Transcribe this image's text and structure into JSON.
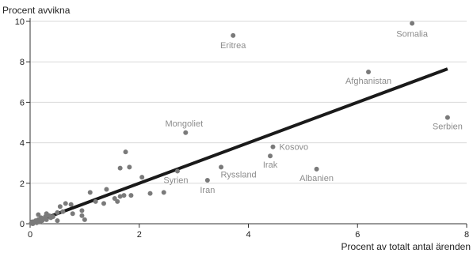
{
  "chart_data": {
    "type": "scatter",
    "title": "",
    "xlabel": "Procent av totalt antal ärenden",
    "ylabel": "Procent avvikna",
    "xlim": [
      0,
      8
    ],
    "ylim": [
      0,
      10
    ],
    "xticks": [
      "0",
      "2",
      "4",
      "6",
      "8"
    ],
    "yticks": [
      "0",
      "2",
      "4",
      "6",
      "8",
      "10"
    ],
    "grid": "horizontal",
    "colors": {
      "point": "#7a7a7a",
      "trend": "#1a1a1a",
      "grid": "#d9d9d9",
      "axis": "#333333",
      "label": "#8c8c8c"
    },
    "trend_line": {
      "x": [
        0,
        7.65
      ],
      "y": [
        0,
        7.65
      ]
    },
    "labeled_points": [
      {
        "label": "Somalia",
        "x": 7.0,
        "y": 9.9
      },
      {
        "label": "Eritrea",
        "x": 3.72,
        "y": 9.3
      },
      {
        "label": "Afghanistan",
        "x": 6.2,
        "y": 7.5
      },
      {
        "label": "Serbien",
        "x": 7.65,
        "y": 5.25
      },
      {
        "label": "Mongoliet",
        "x": 2.85,
        "y": 4.5
      },
      {
        "label": "Kosovo",
        "x": 4.45,
        "y": 3.8
      },
      {
        "label": "Irak",
        "x": 4.4,
        "y": 3.35
      },
      {
        "label": "Ryssland",
        "x": 3.5,
        "y": 2.8
      },
      {
        "label": "Albanien",
        "x": 5.25,
        "y": 2.7
      },
      {
        "label": "Syrien",
        "x": 2.7,
        "y": 2.6
      },
      {
        "label": "Iran",
        "x": 3.25,
        "y": 2.15
      }
    ],
    "unlabeled_points": [
      {
        "x": 1.75,
        "y": 3.55
      },
      {
        "x": 1.65,
        "y": 2.75
      },
      {
        "x": 1.82,
        "y": 2.8
      },
      {
        "x": 2.05,
        "y": 2.3
      },
      {
        "x": 2.2,
        "y": 1.5
      },
      {
        "x": 2.45,
        "y": 1.55
      },
      {
        "x": 1.4,
        "y": 1.7
      },
      {
        "x": 1.55,
        "y": 1.25
      },
      {
        "x": 1.6,
        "y": 1.1
      },
      {
        "x": 1.65,
        "y": 1.35
      },
      {
        "x": 1.72,
        "y": 1.4
      },
      {
        "x": 1.85,
        "y": 1.4
      },
      {
        "x": 1.35,
        "y": 1.0
      },
      {
        "x": 1.1,
        "y": 1.55
      },
      {
        "x": 1.2,
        "y": 1.1
      },
      {
        "x": 0.95,
        "y": 0.65
      },
      {
        "x": 0.95,
        "y": 0.4
      },
      {
        "x": 1.0,
        "y": 0.2
      },
      {
        "x": 0.75,
        "y": 0.95
      },
      {
        "x": 0.78,
        "y": 0.5
      },
      {
        "x": 0.65,
        "y": 1.0
      },
      {
        "x": 0.6,
        "y": 0.6
      },
      {
        "x": 0.55,
        "y": 0.85
      },
      {
        "x": 0.5,
        "y": 0.55
      },
      {
        "x": 0.5,
        "y": 0.15
      },
      {
        "x": 0.42,
        "y": 0.35
      },
      {
        "x": 0.38,
        "y": 0.3
      },
      {
        "x": 0.35,
        "y": 0.4
      },
      {
        "x": 0.3,
        "y": 0.2
      },
      {
        "x": 0.28,
        "y": 0.35
      },
      {
        "x": 0.25,
        "y": 0.25
      },
      {
        "x": 0.22,
        "y": 0.15
      },
      {
        "x": 0.2,
        "y": 0.3
      },
      {
        "x": 0.18,
        "y": 0.1
      },
      {
        "x": 0.15,
        "y": 0.2
      },
      {
        "x": 0.12,
        "y": 0.05
      },
      {
        "x": 0.1,
        "y": 0.15
      },
      {
        "x": 0.08,
        "y": 0.1
      },
      {
        "x": 0.06,
        "y": 0.05
      },
      {
        "x": 0.04,
        "y": 0.1
      },
      {
        "x": 0.02,
        "y": 0.02
      },
      {
        "x": 0.15,
        "y": 0.45
      },
      {
        "x": 0.3,
        "y": 0.5
      },
      {
        "x": 0.05,
        "y": 0.0
      }
    ]
  }
}
